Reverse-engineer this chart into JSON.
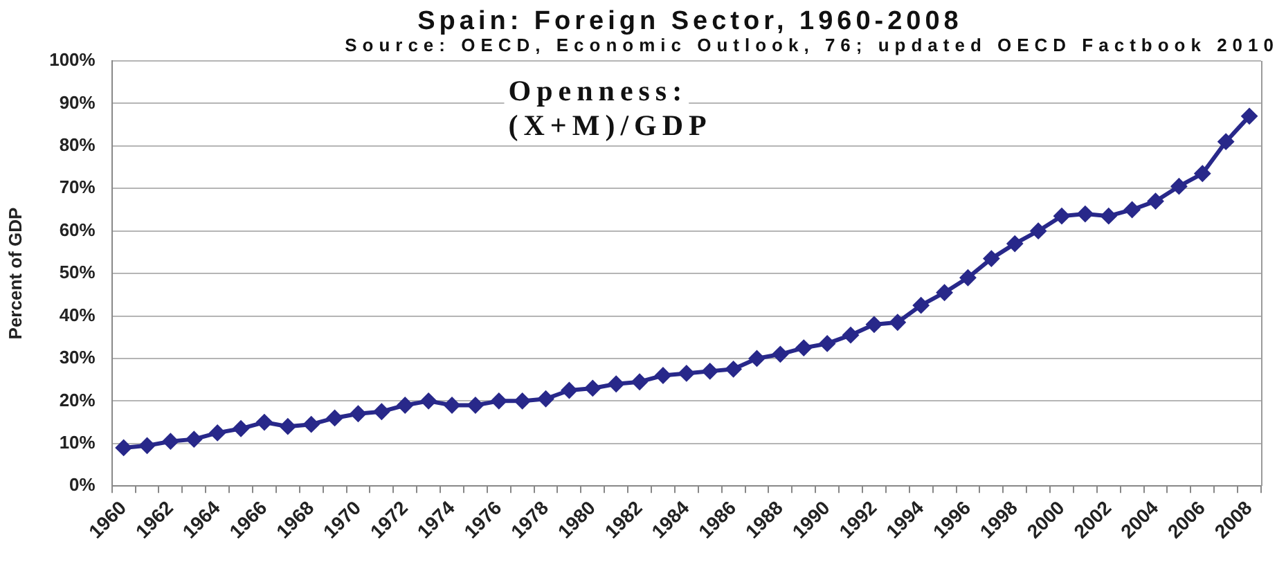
{
  "chart_data": {
    "type": "line",
    "title": "Spain: Foreign Sector, 1960-2008",
    "subtitle": "Source: OECD, Economic Outlook, 76; updated OECD Factbook 2010",
    "ylabel": "Percent of GDP",
    "annotations": [
      "Openness:",
      "(X+M)/GDP"
    ],
    "categories": [
      "1960",
      null,
      "1962",
      null,
      "1964",
      null,
      "1966",
      null,
      "1968",
      null,
      "1970",
      null,
      "1972",
      null,
      "1974",
      null,
      "1976",
      null,
      "1978",
      null,
      "1980",
      null,
      "1982",
      null,
      "1984",
      null,
      "1986",
      null,
      "1988",
      null,
      "1990",
      null,
      "1992",
      null,
      "1994",
      null,
      "1996",
      null,
      "1998",
      null,
      "2000",
      null,
      "2002",
      null,
      "2004",
      null,
      "2006",
      null,
      "2008"
    ],
    "series": [
      {
        "color": "#28288a",
        "values": [
          9,
          9.5,
          10.5,
          11,
          12.5,
          13.5,
          15,
          14,
          14.5,
          16,
          17,
          17.5,
          19,
          20,
          19,
          19,
          20,
          20,
          20.5,
          22.5,
          23,
          24,
          24.5,
          26,
          26.5,
          27,
          27.5,
          30,
          31,
          32.5,
          33.5,
          35.5,
          38,
          38.5,
          42.5,
          45.5,
          49,
          53.5,
          57,
          60,
          63.5,
          64,
          63.5,
          65,
          67,
          70.5,
          73.5,
          81,
          87
        ]
      }
    ],
    "ylim": [
      0,
      100
    ],
    "yticks": [
      {
        "value": 0,
        "label": "0%"
      },
      {
        "value": 10,
        "label": "10%"
      },
      {
        "value": 20,
        "label": "20%"
      },
      {
        "value": 30,
        "label": "30%"
      },
      {
        "value": 40,
        "label": "40%"
      },
      {
        "value": 50,
        "label": "50%"
      },
      {
        "value": 60,
        "label": "60%"
      },
      {
        "value": 70,
        "label": "70%"
      },
      {
        "value": 80,
        "label": "80%"
      },
      {
        "value": 90,
        "label": "90%"
      },
      {
        "value": 100,
        "label": "100%"
      }
    ],
    "grid": "y",
    "marker": "diamond",
    "line_style": "solid"
  }
}
